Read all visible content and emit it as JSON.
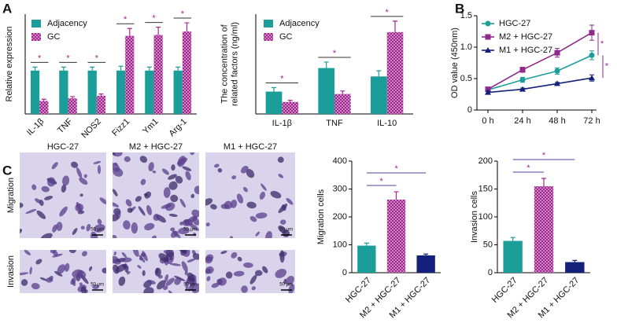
{
  "panel_labels": [
    "A",
    "B",
    "C"
  ],
  "micrographs": {
    "columns": [
      "HGC-27",
      "M2 + HGC-27",
      "M1 + HGC-27"
    ],
    "rows": [
      "Migration",
      "Invasion"
    ],
    "scale_bar": "50 μm"
  },
  "chart_data": [
    {
      "type": "bar",
      "ylabel": [
        "Relative expression"
      ],
      "categories": [
        "IL-1β",
        "TNF",
        "NOS2",
        "Fizz1",
        "Ym1",
        "Arg-1"
      ],
      "series": [
        {
          "name": "Adjacency",
          "color": "#1b9e9a",
          "hatch": false,
          "values": [
            1.0,
            1.0,
            1.0,
            1.0,
            1.0,
            1.0
          ],
          "errors": [
            0.08,
            0.08,
            0.08,
            0.1,
            0.08,
            0.08
          ]
        },
        {
          "name": "GC",
          "color": "#a3268f",
          "hatch": true,
          "values": [
            0.3,
            0.36,
            0.42,
            1.8,
            1.82,
            1.9
          ],
          "errors": [
            0.04,
            0.04,
            0.04,
            0.17,
            0.18,
            0.2
          ]
        }
      ],
      "ylim": [
        0,
        2.3
      ],
      "significance": [
        "*",
        "*",
        "*",
        "*",
        "*",
        "*"
      ]
    },
    {
      "type": "bar",
      "ylabel": [
        "The concentration of",
        "related factors (ng/ml)"
      ],
      "categories": [
        "IL-1β",
        "TNF",
        "IL-10"
      ],
      "series": [
        {
          "name": "Adjacency",
          "color": "#1b9e9a",
          "hatch": false,
          "values": [
            112,
            230,
            188
          ],
          "errors": [
            20,
            30,
            28
          ]
        },
        {
          "name": "GC",
          "color": "#a3268f",
          "hatch": true,
          "values": [
            60,
            100,
            410
          ],
          "errors": [
            8,
            15,
            55
          ]
        }
      ],
      "ylim": [
        0,
        500
      ],
      "significance": [
        "*",
        "*",
        "*"
      ]
    },
    {
      "type": "line",
      "ylabel": [
        "OD value (450nm)"
      ],
      "categories": [
        "0 h",
        "24 h",
        "48 h",
        "72 h"
      ],
      "series": [
        {
          "name": "HGC-27",
          "color": "#1b9e9a",
          "marker": "circle",
          "values": [
            0.32,
            0.48,
            0.62,
            0.87
          ],
          "errors": [
            0.02,
            0.04,
            0.05,
            0.07
          ]
        },
        {
          "name": "M2 + HGC-27",
          "color": "#8e2a8a",
          "marker": "square",
          "values": [
            0.33,
            0.64,
            0.91,
            1.23
          ],
          "errors": [
            0.02,
            0.04,
            0.07,
            0.12
          ]
        },
        {
          "name": "M1 + HGC-27",
          "color": "#14217a",
          "marker": "triangle",
          "values": [
            0.28,
            0.33,
            0.42,
            0.51
          ],
          "errors": [
            0.02,
            0.02,
            0.02,
            0.05
          ]
        }
      ],
      "ylim": [
        0,
        1.5
      ],
      "yticks": [
        0,
        0.5,
        {
          "value": 1.0,
          "label": "1.0"
        },
        1.5
      ],
      "significance": [
        "*",
        "*"
      ]
    },
    {
      "type": "bar",
      "ylabel": [
        "Migration cells"
      ],
      "categories": [
        "HGC-27",
        "M2 + HGC-27",
        "M1 + HGC-27"
      ],
      "values": [
        97,
        262,
        62
      ],
      "errors": [
        9,
        28,
        5
      ],
      "colors": [
        "#1b9e9a",
        "#a3268f",
        "#14217a"
      ],
      "hatch": [
        false,
        true,
        false
      ],
      "ylim": [
        0,
        400
      ],
      "yticks": [
        0,
        100,
        200,
        300,
        400
      ],
      "significance": [
        "*",
        "*"
      ]
    },
    {
      "type": "bar",
      "ylabel": [
        "Invasion cells"
      ],
      "categories": [
        "HGC-27",
        "M2 + HGC-27",
        "M1 + HGC-27"
      ],
      "values": [
        57,
        155,
        19
      ],
      "errors": [
        6,
        14,
        3
      ],
      "colors": [
        "#1b9e9a",
        "#a3268f",
        "#14217a"
      ],
      "hatch": [
        false,
        true,
        false
      ],
      "ylim": [
        0,
        200
      ],
      "yticks": [
        0,
        50,
        100,
        150,
        200
      ],
      "significance": [
        "*",
        "*"
      ]
    }
  ]
}
